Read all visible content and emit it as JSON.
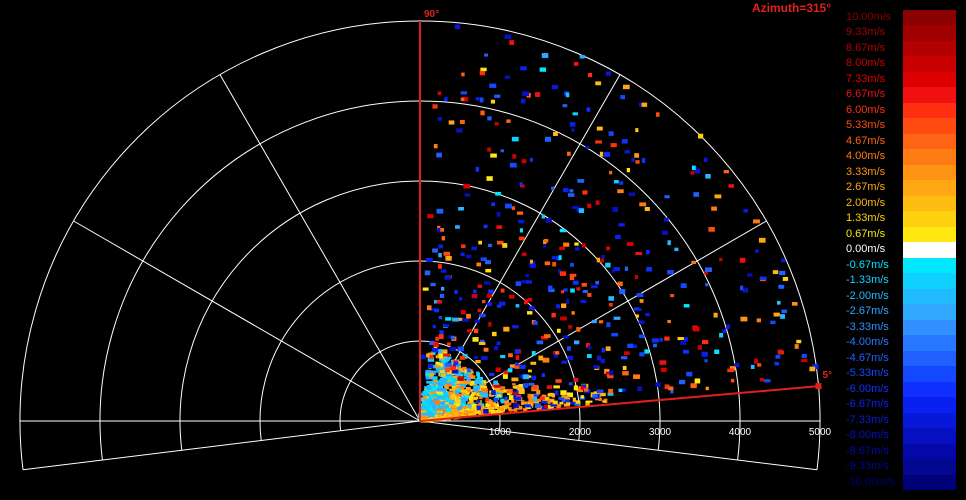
{
  "header": {
    "azimuth": "Azimuth=315°"
  },
  "chart_data": {
    "type": "scatter",
    "title": "",
    "ranges": [
      1000,
      2000,
      3000,
      4000,
      5000
    ],
    "range_labels": [
      "1000",
      "2000",
      "3000",
      "4000",
      "5000"
    ],
    "angle_labels": {
      "top": "90°",
      "right": "5°"
    },
    "elevation_start_deg": 5,
    "elevation_end_deg": 90,
    "max_range": 5000,
    "velocity_scale": {
      "labels": [
        "10.00m/s",
        "9.33m/s",
        "8.67m/s",
        "8.00m/s",
        "7.33m/s",
        "6.67m/s",
        "6.00m/s",
        "5.33m/s",
        "4.67m/s",
        "4.00m/s",
        "3.33m/s",
        "2.67m/s",
        "2.00m/s",
        "1.33m/s",
        "0.67m/s",
        "0.00m/s",
        "-0.67m/s",
        "-1.33m/s",
        "-2.00m/s",
        "-2.67m/s",
        "-3.33m/s",
        "-4.00m/s",
        "-4.67m/s",
        "-5.33m/s",
        "-6.00m/s",
        "-6.67m/s",
        "-7.33m/s",
        "-8.00m/s",
        "-8.67m/s",
        "-9.33m/s",
        "-10.00m/s"
      ],
      "colors": [
        "#8b0000",
        "#a00000",
        "#b40000",
        "#c80000",
        "#dc0000",
        "#f01010",
        "#ff3010",
        "#ff4a10",
        "#ff6414",
        "#ff7c14",
        "#ff9414",
        "#ffa814",
        "#ffbc10",
        "#ffd010",
        "#ffe810",
        "#ffffff",
        "#00e8ff",
        "#10d0ff",
        "#20bcff",
        "#30a8ff",
        "#3090ff",
        "#2878ff",
        "#2060ff",
        "#1448ff",
        "#1030ff",
        "#0a20f0",
        "#0818d8",
        "#0610c0",
        "#0408a8",
        "#020890",
        "#000078"
      ]
    }
  }
}
